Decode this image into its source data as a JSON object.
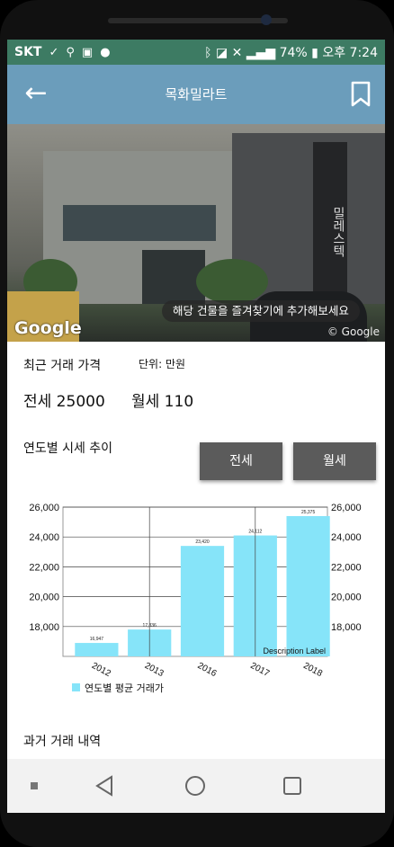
{
  "status_bar": {
    "carrier": "SKT",
    "icons": [
      "check-icon",
      "usb-icon",
      "image-icon",
      "chat-icon"
    ],
    "right_icons": [
      "bluetooth-icon",
      "nfc-icon",
      "mute-icon",
      "signal-icon"
    ],
    "battery": "74%",
    "time": "오후 7:24"
  },
  "app_bar": {
    "title": "목화밀라트",
    "accent_color": "#6b9dbb"
  },
  "photo": {
    "sign_text": "밀레스텍",
    "google_logo": "Google",
    "google_watermark": "© Google",
    "toast": "해당 건물을 즐겨찾기에 추가해보세요"
  },
  "recent": {
    "label": "최근 거래 가격",
    "unit": "단위: 만원",
    "jeonse": "전세 25000",
    "wolse": "월세 110"
  },
  "trend": {
    "label": "연도별 시세 추이",
    "button_jeonse": "전세",
    "button_wolse": "월세"
  },
  "chart_data": {
    "type": "bar",
    "categories": [
      "2012",
      "2013",
      "2016",
      "2017",
      "2018"
    ],
    "series": [
      {
        "name": "연도별 평균 거래가",
        "values": [
          16900,
          17800,
          23400,
          24100,
          25400
        ],
        "color": "#86e4f9"
      }
    ],
    "data_labels": [
      "16,947",
      "17,836",
      "23,420",
      "24,112",
      "25,375"
    ],
    "ylim": [
      16000,
      26000
    ],
    "yticks": [
      "18,000",
      "20,000",
      "22,000",
      "24,000",
      "26,000"
    ],
    "description_label": "Description Label",
    "legend": "bottom-left"
  },
  "history": {
    "label": "과거 거래 내역"
  }
}
